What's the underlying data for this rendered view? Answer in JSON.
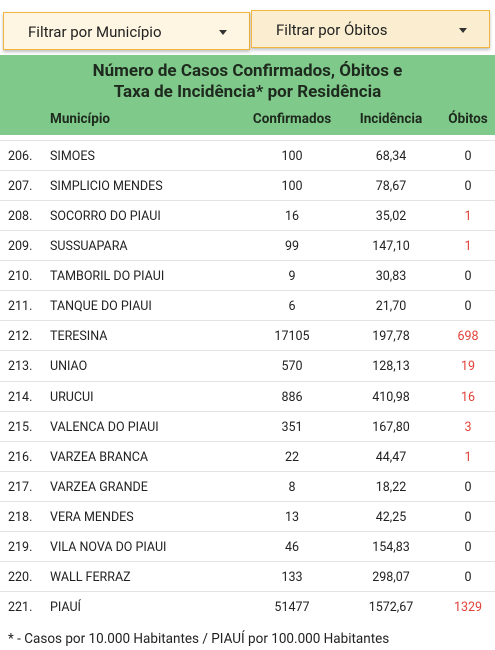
{
  "filters": [
    "Filtrar por Município",
    "Filtrar por Óbitos"
  ],
  "table": {
    "title_lines": [
      "Número de Casos Confirmados, Óbitos e",
      "Taxa de Incidência* por Residência"
    ],
    "columns": [
      "Município",
      "Confirmados",
      "Incidência",
      "Óbitos"
    ],
    "rows": [
      [
        "206.",
        "SIMOES",
        "100",
        "68,34",
        "0"
      ],
      [
        "207.",
        "SIMPLICIO MENDES",
        "100",
        "78,67",
        "0"
      ],
      [
        "208.",
        "SOCORRO DO PIAUI",
        "16",
        "35,02",
        "1"
      ],
      [
        "209.",
        "SUSSUAPARA",
        "99",
        "147,10",
        "1"
      ],
      [
        "210.",
        "TAMBORIL DO PIAUI",
        "9",
        "30,83",
        "0"
      ],
      [
        "211.",
        "TANQUE DO PIAUI",
        "6",
        "21,70",
        "0"
      ],
      [
        "212.",
        "TERESINA",
        "17105",
        "197,78",
        "698"
      ],
      [
        "213.",
        "UNIAO",
        "570",
        "128,13",
        "19"
      ],
      [
        "214.",
        "URUCUI",
        "886",
        "410,98",
        "16"
      ],
      [
        "215.",
        "VALENCA DO PIAUI",
        "351",
        "167,80",
        "3"
      ],
      [
        "216.",
        "VARZEA BRANCA",
        "22",
        "44,47",
        "1"
      ],
      [
        "217.",
        "VARZEA GRANDE",
        "8",
        "18,22",
        "0"
      ],
      [
        "218.",
        "VERA MENDES",
        "13",
        "42,25",
        "0"
      ],
      [
        "219.",
        "VILA NOVA DO PIAUI",
        "46",
        "154,83",
        "0"
      ],
      [
        "220.",
        "WALL FERRAZ",
        "133",
        "298,07",
        "0"
      ],
      [
        "221.",
        "PIAUÍ",
        "51477",
        "1572,67",
        "1329"
      ]
    ]
  },
  "footnote": "* - Casos por 10.000 Habitantes / PIAUÍ por 100.000 Habitantes"
}
